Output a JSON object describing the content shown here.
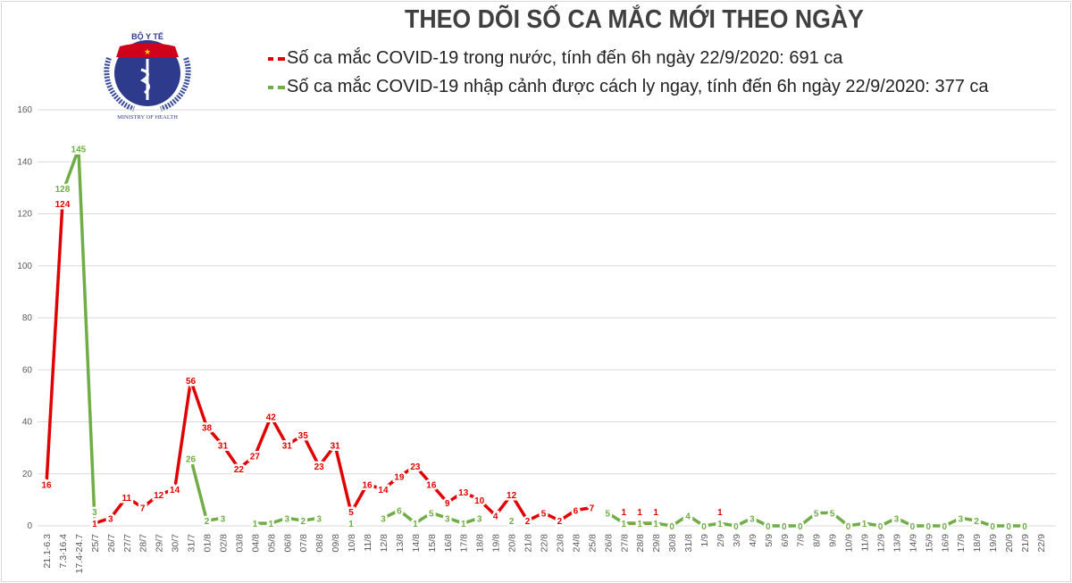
{
  "logo": {
    "top_text": "BỘ Y TẾ",
    "bottom_text": "MINISTRY OF HEALTH"
  },
  "chart_data": {
    "type": "line",
    "title": "THEO DÕI SỐ CA MẮC MỚI THEO NGÀY",
    "ylim": [
      0,
      160
    ],
    "yticks": [
      0,
      20,
      40,
      60,
      80,
      100,
      120,
      140,
      160
    ],
    "grid": true,
    "legend_placement": "top",
    "categories": [
      "21.1-6.3",
      "7.3-16.4",
      "17.4-24.7",
      "25/7",
      "26/7",
      "27/7",
      "28/7",
      "29/7",
      "30/7",
      "31/7",
      "01/8",
      "02/8",
      "03/8",
      "04/8",
      "05/8",
      "06/8",
      "07/8",
      "08/8",
      "09/8",
      "10/8",
      "11/8",
      "12/8",
      "13/8",
      "14/8",
      "15/8",
      "16/8",
      "17/8",
      "18/8",
      "19/8",
      "20/8",
      "21/8",
      "22/8",
      "23/8",
      "24/8",
      "25/8",
      "26/8",
      "27/8",
      "28/8",
      "29/8",
      "30/8",
      "31/8",
      "1/9",
      "2/9",
      "3/9",
      "4/9",
      "5/9",
      "6/9",
      "7/9",
      "8/9",
      "9/9",
      "10/9",
      "11/9",
      "12/9",
      "13/9",
      "14/9",
      "15/9",
      "16/9",
      "17/9",
      "18/9",
      "19/9",
      "20/9",
      "21/9",
      "22/9"
    ],
    "series": [
      {
        "name": "Số ca mắc COVID-19 trong nước, tính đến 6h ngày 22/9/2020: 691 ca",
        "color": "#e00000",
        "values": [
          16,
          124,
          null,
          1,
          3,
          11,
          7,
          12,
          14,
          56,
          38,
          31,
          22,
          27,
          42,
          31,
          35,
          23,
          31,
          5,
          16,
          14,
          19,
          23,
          16,
          9,
          13,
          10,
          4,
          12,
          2,
          5,
          2,
          6,
          7,
          null,
          1,
          1,
          1,
          null,
          null,
          null,
          1,
          null,
          null,
          null,
          null,
          null,
          null,
          null,
          null,
          null,
          null,
          null,
          null,
          null,
          null,
          null,
          null,
          null,
          null,
          null,
          null
        ]
      },
      {
        "name": "Số ca mắc COVID-19 nhập cảnh được cách ly ngay, tính đến 6h ngày 22/9/2020: 377 ca",
        "color": "#70ad47",
        "values": [
          null,
          128,
          145,
          3,
          null,
          null,
          null,
          null,
          null,
          26,
          2,
          3,
          null,
          1,
          1,
          3,
          2,
          3,
          null,
          1,
          null,
          3,
          6,
          1,
          5,
          3,
          1,
          3,
          null,
          2,
          null,
          null,
          null,
          null,
          null,
          5,
          1,
          1,
          1,
          0,
          4,
          0,
          1,
          0,
          3,
          0,
          0,
          0,
          5,
          5,
          0,
          1,
          0,
          3,
          0,
          0,
          0,
          3,
          2,
          0,
          0,
          0,
          null
        ]
      }
    ]
  }
}
